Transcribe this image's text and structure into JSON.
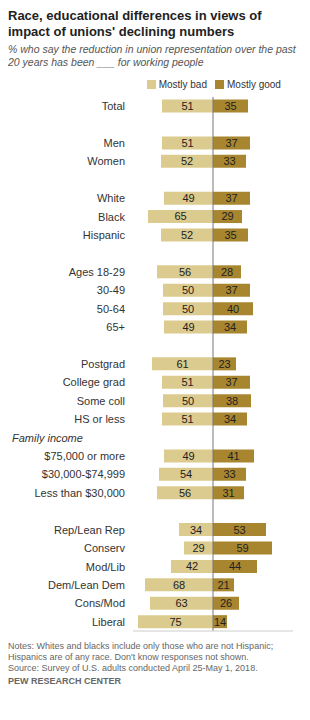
{
  "chart_data": {
    "type": "bar",
    "orientation": "horizontal",
    "title": "Race, educational differences in views of impact of unions' declining numbers",
    "subtitle": "% who say the reduction in union representation over the past 20 years has been ___ for working people",
    "notes": [
      "Notes: Whites and blacks include only those who are not Hispanic; Hispanics are of any race. Don't know responses not shown.",
      "Source: Survey of U.S. adults conducted April 25-May 1, 2018.",
      "PEW RESEARCH CENTER"
    ],
    "categories": [
      "Total",
      null,
      "Men",
      "Women",
      null,
      "White",
      "Black",
      "Hispanic",
      null,
      "Ages 18-29",
      "30-49",
      "50-64",
      "65+",
      null,
      "Postgrad",
      "College grad",
      "Some coll",
      "HS or less",
      "Family income",
      "$75,000 or more",
      "$30,000-$74,999",
      "Less than $30,000",
      null,
      "Rep/Lean Rep",
      "Conserv",
      "Mod/Lib",
      "Dem/Lean Dem",
      "Cons/Mod",
      "Liberal"
    ],
    "series": [
      {
        "name": "Mostly bad",
        "color": "#dccb8e",
        "values": [
          51,
          null,
          51,
          52,
          null,
          49,
          65,
          52,
          null,
          56,
          50,
          50,
          49,
          null,
          61,
          51,
          50,
          51,
          null,
          49,
          54,
          56,
          null,
          34,
          29,
          42,
          68,
          63,
          75
        ]
      },
      {
        "name": "Mostly good",
        "color": "#a8862f",
        "values": [
          35,
          null,
          37,
          33,
          null,
          37,
          29,
          35,
          null,
          28,
          37,
          40,
          34,
          null,
          23,
          37,
          38,
          34,
          null,
          41,
          33,
          31,
          null,
          53,
          59,
          44,
          21,
          26,
          14
        ]
      }
    ],
    "xlim": [
      0,
      80
    ],
    "data_labels": true,
    "tick_labels": "y",
    "legend": "top"
  }
}
